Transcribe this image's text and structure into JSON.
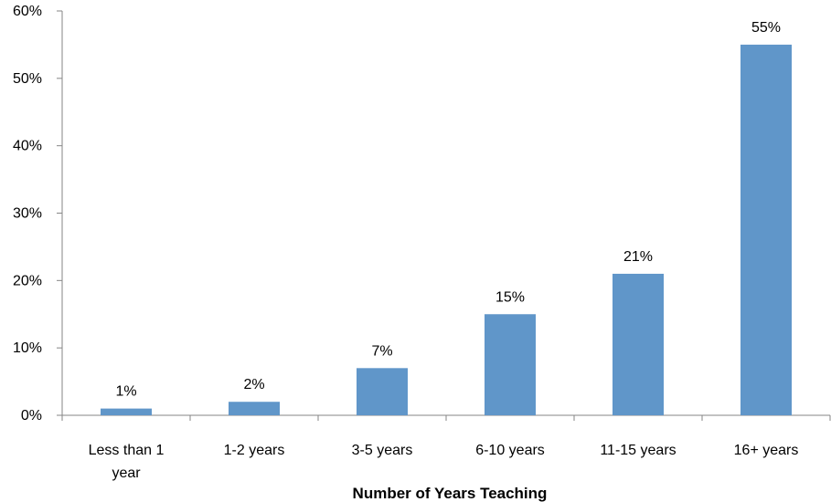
{
  "chart_data": {
    "type": "bar",
    "categories": [
      "Less than 1 year",
      "1-2 years",
      "3-5 years",
      "6-10 years",
      "11-15 years",
      "16+ years"
    ],
    "category_label_lines": [
      [
        "Less than 1",
        "year"
      ],
      [
        "1-2 years"
      ],
      [
        "3-5 years"
      ],
      [
        "6-10 years"
      ],
      [
        "11-15 years"
      ],
      [
        "16+ years"
      ]
    ],
    "values": [
      1,
      2,
      7,
      15,
      21,
      55
    ],
    "data_labels": [
      "1%",
      "2%",
      "7%",
      "15%",
      "21%",
      "55%"
    ],
    "title": "",
    "xlabel": "Number of Years Teaching",
    "ylabel": "",
    "ylim": [
      0,
      60
    ],
    "yticks": [
      0,
      10,
      20,
      30,
      40,
      50,
      60
    ],
    "ytick_labels": [
      "0%",
      "10%",
      "20%",
      "30%",
      "40%",
      "50%",
      "60%"
    ],
    "grid": false,
    "legend": "none",
    "bar_color": "#6096c9"
  }
}
